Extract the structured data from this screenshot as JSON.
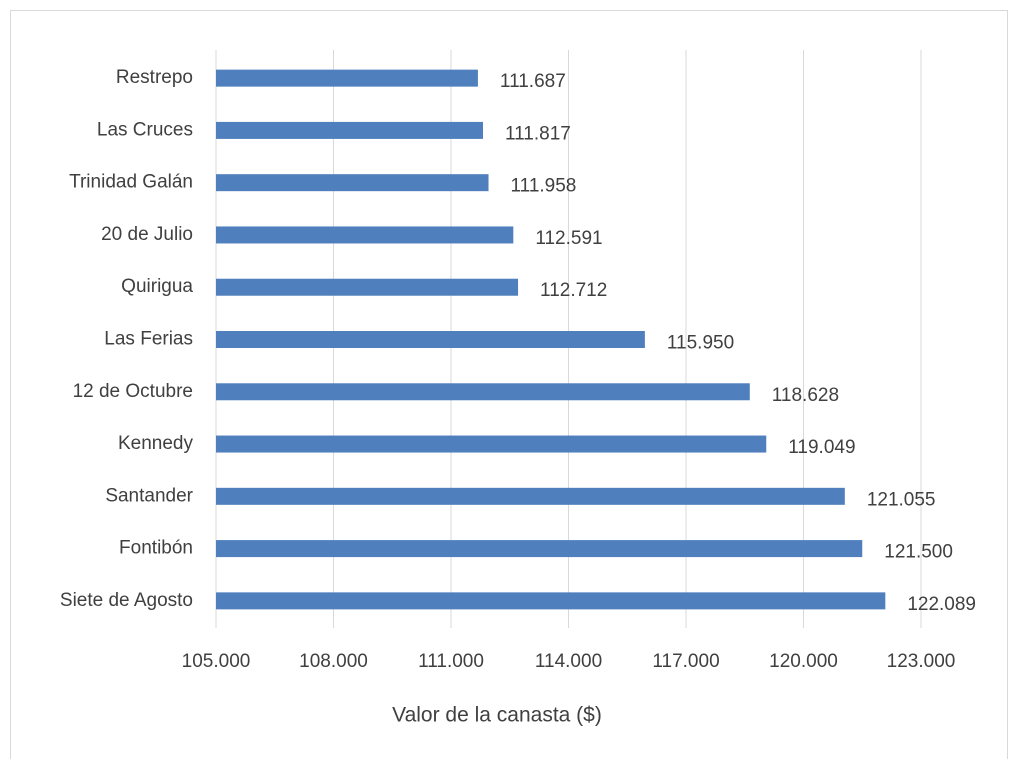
{
  "chart_data": {
    "type": "bar",
    "orientation": "horizontal",
    "x_label": "Valor de la canasta ($)",
    "categories": [
      "Restrepo",
      "Las Cruces",
      "Trinidad Galán",
      "20 de Julio",
      "Quirigua",
      "Las Ferias",
      "12 de Octubre",
      "Kennedy",
      "Santander",
      "Fontibón",
      "Siete de Agosto"
    ],
    "values": [
      111687,
      111817,
      111958,
      112591,
      112712,
      115950,
      118628,
      119049,
      121055,
      121500,
      122089
    ],
    "value_labels": [
      "111.687",
      "111.817",
      "111.958",
      "112.591",
      "112.712",
      "115.950",
      "118.628",
      "119.049",
      "121.055",
      "121.500",
      "122.089"
    ],
    "color": "#4f7fbd",
    "xlim": [
      105000,
      123000
    ],
    "xticks": [
      {
        "value": 105000,
        "label": "105.000"
      },
      {
        "value": 108000,
        "label": "108.000"
      },
      {
        "value": 111000,
        "label": "111.000"
      },
      {
        "value": 114000,
        "label": "114.000"
      },
      {
        "value": 117000,
        "label": "117.000"
      },
      {
        "value": 120000,
        "label": "120.000"
      },
      {
        "value": 123000,
        "label": "123.000"
      }
    ],
    "grid": true
  }
}
